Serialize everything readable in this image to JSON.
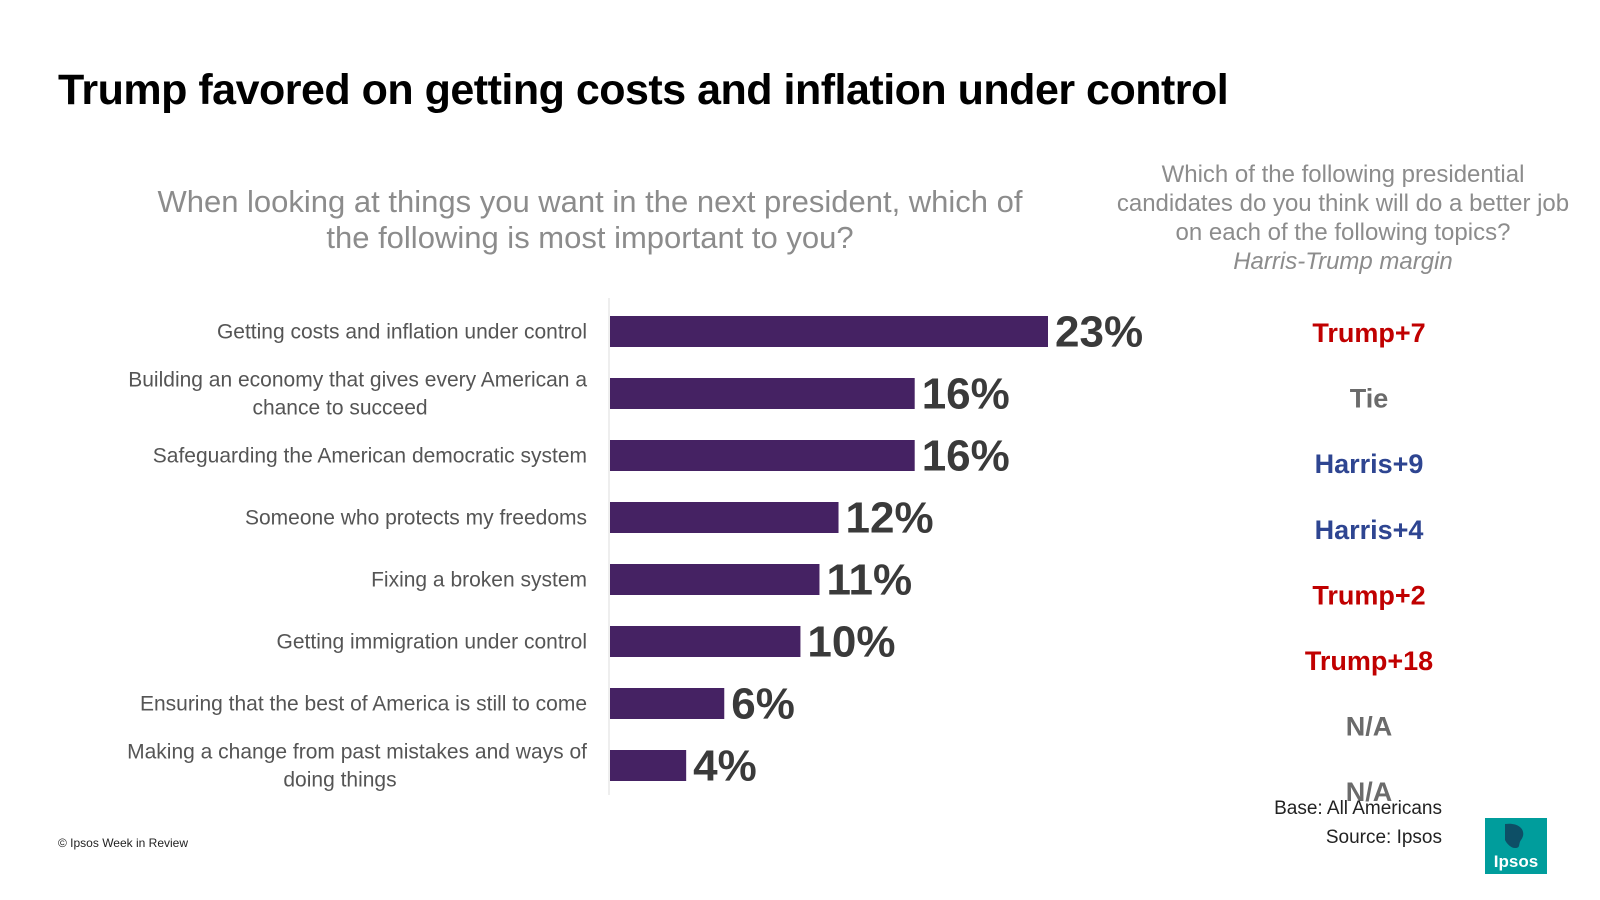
{
  "title": "Trump favored on getting costs and inflation under control",
  "left_question": "When looking at things you want in the next president, which of the following is most important to you?",
  "right_question": {
    "text": "Which of the following presidential candidates do you think will do a better job on each of the following topics?",
    "subtitle": "Harris-Trump margin"
  },
  "footer": {
    "base": "Base: All Americans",
    "source": "Source: Ipsos",
    "copyright": "© Ipsos Week in Review"
  },
  "logo": {
    "text": "Ipsos",
    "color": "#009d9c"
  },
  "colors": {
    "bar": "#452263",
    "trump": "#c00000",
    "harris": "#2e4591",
    "neutral": "#6b6b6b",
    "value": "#3a3a3a"
  },
  "chart_data": {
    "type": "bar",
    "orientation": "horizontal",
    "categories": [
      [
        "Getting costs and inflation under control"
      ],
      [
        "Building an economy that gives every American a",
        "chance to succeed"
      ],
      [
        "Safeguarding the American democratic system"
      ],
      [
        "Someone who protects my freedoms"
      ],
      [
        "Fixing a broken system"
      ],
      [
        "Getting immigration under control"
      ],
      [
        "Ensuring that the best of America is still to come"
      ],
      [
        "Making a change from past mistakes and ways of",
        "doing things"
      ]
    ],
    "values": [
      23,
      16,
      16,
      12,
      11,
      10,
      6,
      4
    ],
    "value_labels": [
      "23%",
      "16%",
      "16%",
      "12%",
      "11%",
      "10%",
      "6%",
      "4%"
    ],
    "margins": [
      {
        "text": "Trump+7",
        "party": "trump"
      },
      {
        "text": "Tie",
        "party": "neutral"
      },
      {
        "text": "Harris+9",
        "party": "harris"
      },
      {
        "text": "Harris+4",
        "party": "harris"
      },
      {
        "text": "Trump+2",
        "party": "trump"
      },
      {
        "text": "Trump+18",
        "party": "trump"
      },
      {
        "text": "N/A",
        "party": "neutral"
      },
      {
        "text": "N/A",
        "party": "neutral"
      }
    ],
    "xlim": [
      0,
      23
    ],
    "grid": false,
    "legend": "none"
  }
}
